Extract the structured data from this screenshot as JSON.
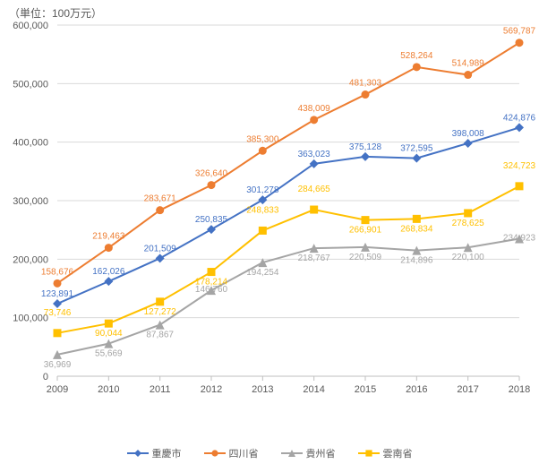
{
  "unit_label": "（単位：100万元）",
  "chart": {
    "type": "line",
    "categories": [
      "2009",
      "2010",
      "2011",
      "2012",
      "2013",
      "2014",
      "2015",
      "2016",
      "2017",
      "2018"
    ],
    "ylim": [
      0,
      600000
    ],
    "ytick_step": 100000,
    "gridline_color": "#d9d9d9",
    "axis_color": "#bfbfbf",
    "background_color": "#ffffff",
    "label_color": "#595959",
    "label_fontsize": 11,
    "data_label_fontsize": 10,
    "line_width": 2,
    "marker_size": 5,
    "series": [
      {
        "name": "重慶市",
        "color": "#4472c4",
        "marker": "diamond",
        "values": [
          123891,
          162026,
          201509,
          250835,
          301278,
          363023,
          375128,
          372595,
          398008,
          424876
        ]
      },
      {
        "name": "四川省",
        "color": "#ed7d31",
        "marker": "circle",
        "values": [
          158676,
          219463,
          283671,
          326640,
          385300,
          438009,
          481303,
          528264,
          514989,
          569787
        ]
      },
      {
        "name": "貴州省",
        "color": "#a5a5a5",
        "marker": "triangle",
        "values": [
          36969,
          55669,
          87867,
          146760,
          194254,
          218767,
          220509,
          214896,
          220100,
          234923
        ]
      },
      {
        "name": "雲南省",
        "color": "#ffc000",
        "marker": "square",
        "values": [
          73746,
          90044,
          127272,
          178214,
          248833,
          284665,
          266901,
          268834,
          278625,
          324723
        ]
      }
    ]
  },
  "legend_items": [
    {
      "label": "重慶市",
      "color": "#4472c4",
      "marker": "diamond"
    },
    {
      "label": "四川省",
      "color": "#ed7d31",
      "marker": "circle"
    },
    {
      "label": "貴州省",
      "color": "#a5a5a5",
      "marker": "triangle"
    },
    {
      "label": "雲南省",
      "color": "#ffc000",
      "marker": "square"
    }
  ]
}
